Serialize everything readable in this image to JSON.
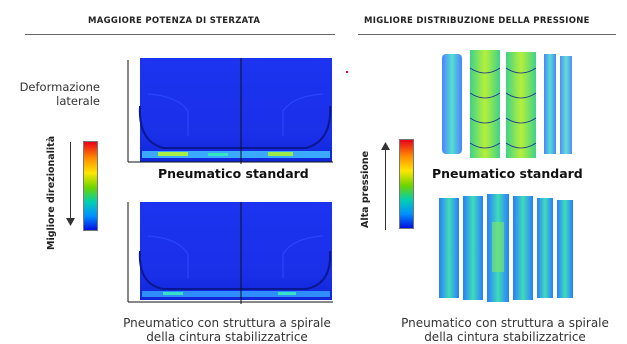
{
  "left_section": {
    "title": "MAGGIORE POTENZA DI STERZATA",
    "side_label_line1": "Deformazione",
    "side_label_line2": "laterale",
    "scale_label": "Migliore direzionalità",
    "top_caption": "Pneumatico standard",
    "bottom_caption_line1": "Pneumatico con struttura a spirale",
    "bottom_caption_line2": "della cintura stabilizzatrice"
  },
  "right_section": {
    "title": "MIGLIORE DISTRIBUZIONE DELLA PRESSIONE",
    "scale_label": "Alta pressione",
    "top_caption": "Pneumatico standard",
    "bottom_caption_line1": "Pneumatico con struttura a spirale",
    "bottom_caption_line2": "della cintura stabilizzatrice"
  },
  "colors": {
    "tyre_blue": "#1a2fe8",
    "rule": "#666666"
  }
}
